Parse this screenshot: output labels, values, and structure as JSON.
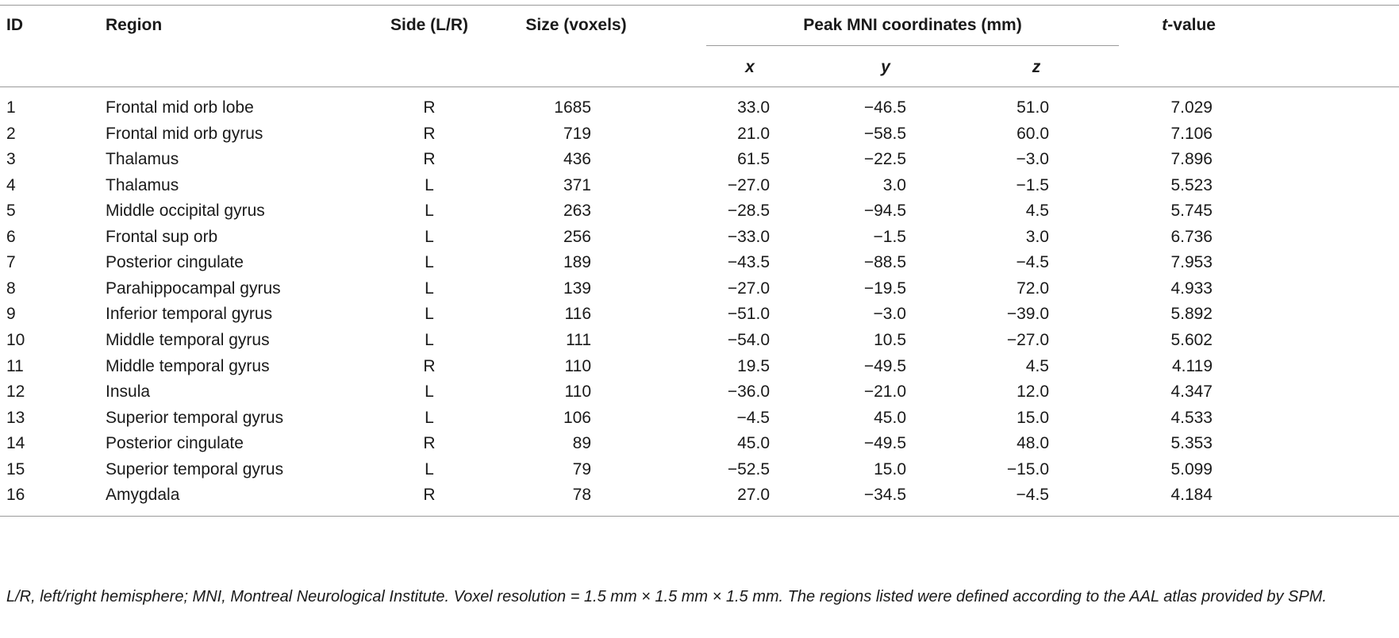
{
  "table": {
    "headers": {
      "id": "ID",
      "region": "Region",
      "side": "Side (L/R)",
      "size": "Size (voxels)",
      "peak": "Peak MNI coordinates (mm)",
      "x": "x",
      "y": "y",
      "z": "z",
      "t_italic": "t",
      "t_rest": "-value"
    },
    "rows": [
      [
        "1",
        "Frontal mid orb lobe",
        "R",
        "1685",
        "33.0",
        "−46.5",
        "51.0",
        "7.029"
      ],
      [
        "2",
        "Frontal mid orb gyrus",
        "R",
        "719",
        "21.0",
        "−58.5",
        "60.0",
        "7.106"
      ],
      [
        "3",
        "Thalamus",
        "R",
        "436",
        "61.5",
        "−22.5",
        "−3.0",
        "7.896"
      ],
      [
        "4",
        "Thalamus",
        "L",
        "371",
        "−27.0",
        "3.0",
        "−1.5",
        "5.523"
      ],
      [
        "5",
        "Middle occipital gyrus",
        "L",
        "263",
        "−28.5",
        "−94.5",
        "4.5",
        "5.745"
      ],
      [
        "6",
        "Frontal sup orb",
        "L",
        "256",
        "−33.0",
        "−1.5",
        "3.0",
        "6.736"
      ],
      [
        "7",
        "Posterior cingulate",
        "L",
        "189",
        "−43.5",
        "−88.5",
        "−4.5",
        "7.953"
      ],
      [
        "8",
        "Parahippocampal gyrus",
        "L",
        "139",
        "−27.0",
        "−19.5",
        "72.0",
        "4.933"
      ],
      [
        "9",
        "Inferior temporal gyrus",
        "L",
        "116",
        "−51.0",
        "−3.0",
        "−39.0",
        "5.892"
      ],
      [
        "10",
        "Middle temporal gyrus",
        "L",
        "111",
        "−54.0",
        "10.5",
        "−27.0",
        "5.602"
      ],
      [
        "11",
        "Middle temporal gyrus",
        "R",
        "110",
        "19.5",
        "−49.5",
        "4.5",
        "4.119"
      ],
      [
        "12",
        "Insula",
        "L",
        "110",
        "−36.0",
        "−21.0",
        "12.0",
        "4.347"
      ],
      [
        "13",
        "Superior temporal gyrus",
        "L",
        "106",
        "−4.5",
        "45.0",
        "15.0",
        "4.533"
      ],
      [
        "14",
        "Posterior cingulate",
        "R",
        "89",
        "45.0",
        "−49.5",
        "48.0",
        "5.353"
      ],
      [
        "15",
        "Superior temporal gyrus",
        "L",
        "79",
        "−52.5",
        "15.0",
        "−15.0",
        "5.099"
      ],
      [
        "16",
        "Amygdala",
        "R",
        "78",
        "27.0",
        "−34.5",
        "−4.5",
        "4.184"
      ]
    ]
  },
  "footnote": "L/R, left/right hemisphere; MNI, Montreal Neurological Institute. Voxel resolution = 1.5 mm × 1.5 mm × 1.5 mm. The regions listed were defined according to the AAL atlas provided by SPM."
}
